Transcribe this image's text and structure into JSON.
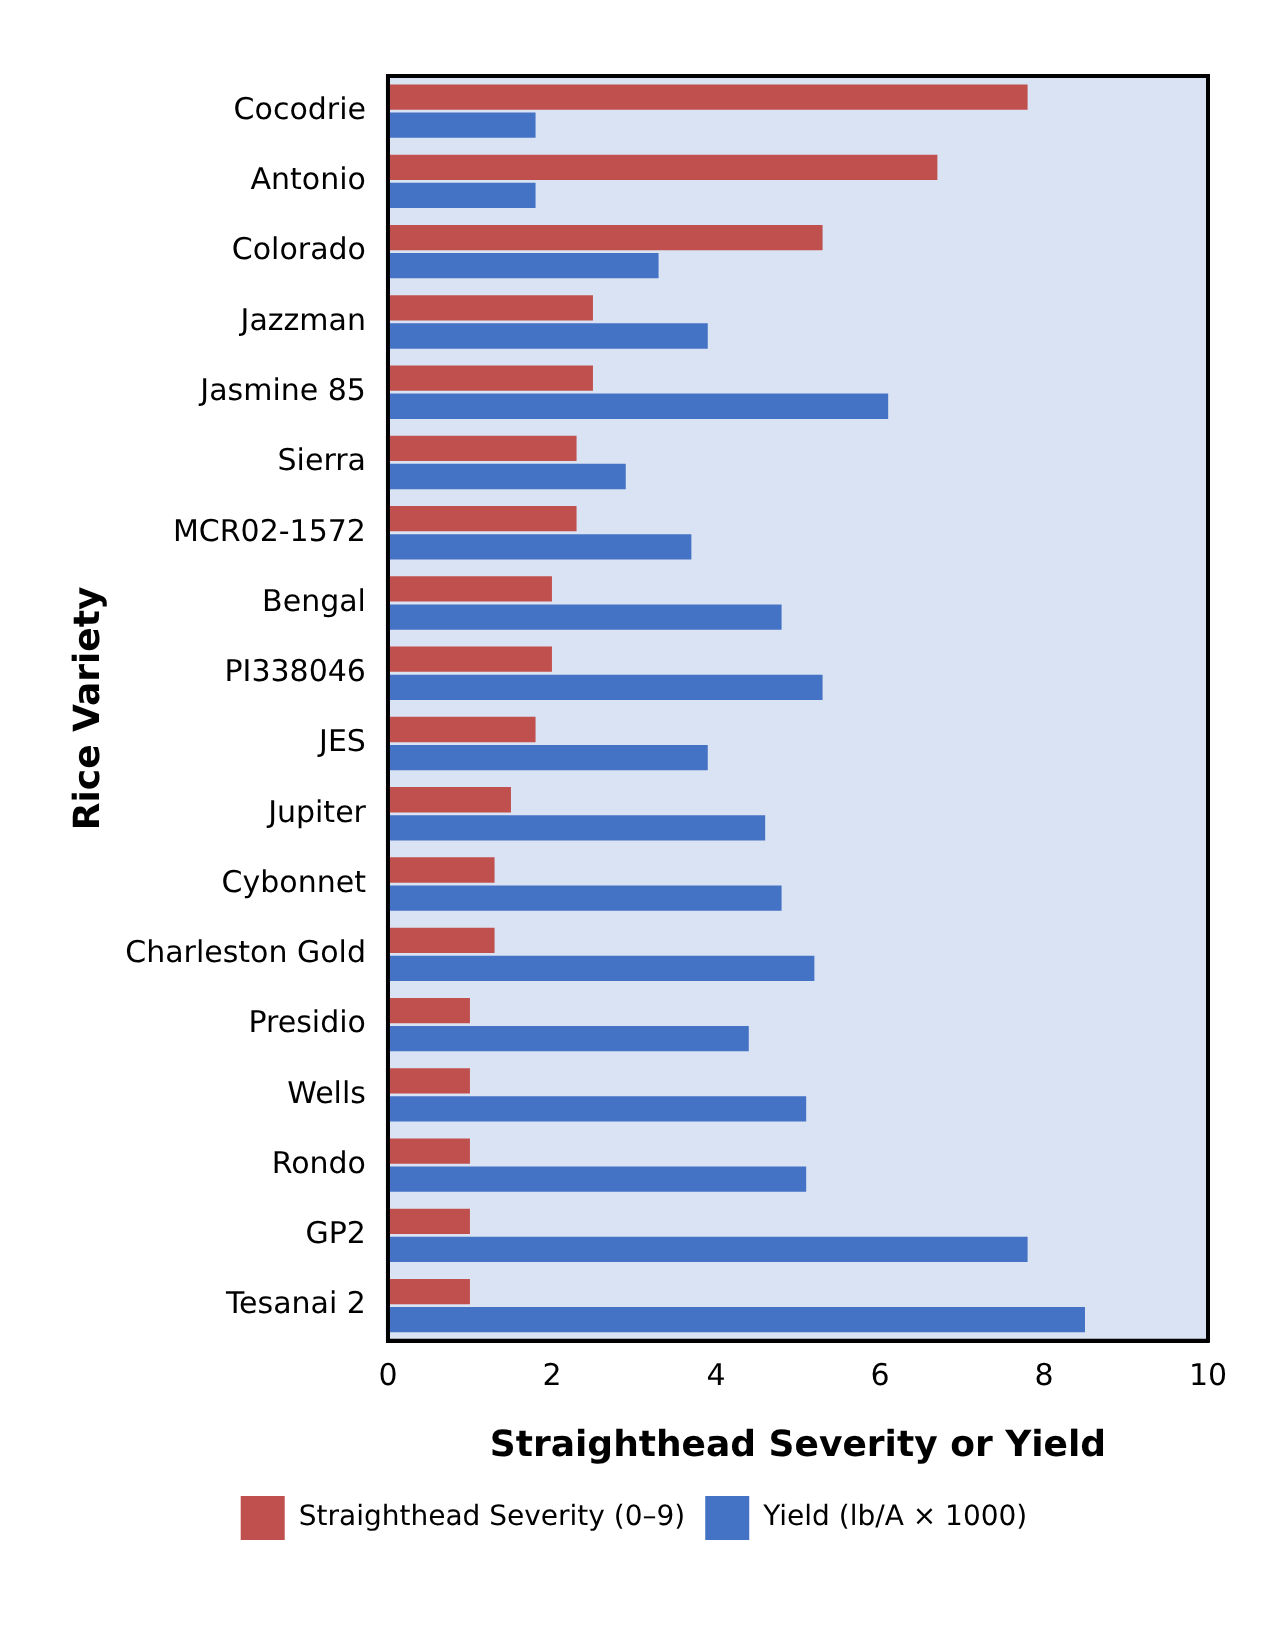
{
  "chart_data": {
    "type": "bar",
    "orientation": "horizontal",
    "xlabel": "Straighthead Severity or Yield",
    "ylabel": "Rice Variety",
    "categories": [
      "Cocodrie",
      "Antonio",
      "Colorado",
      "Jazzman",
      "Jasmine 85",
      "Sierra",
      "MCR02-1572",
      "Bengal",
      "PI338046",
      "JES",
      "Jupiter",
      "Cybonnet",
      "Charleston Gold",
      "Presidio",
      "Wells",
      "Rondo",
      "GP2",
      "Tesanai 2"
    ],
    "series": [
      {
        "name": "Straighthead Severity (0–9)",
        "color": "#c0504d",
        "values": [
          7.8,
          6.7,
          5.3,
          2.5,
          2.5,
          2.3,
          2.3,
          2.0,
          2.0,
          1.8,
          1.5,
          1.3,
          1.3,
          1.0,
          1.0,
          1.0,
          1.0,
          1.0
        ]
      },
      {
        "name": "Yield (lb/A × 1000)",
        "color": "#4472c4",
        "values": [
          1.8,
          1.8,
          3.3,
          3.9,
          6.1,
          2.9,
          3.7,
          4.8,
          5.3,
          3.9,
          4.6,
          4.8,
          5.2,
          4.4,
          5.1,
          5.1,
          7.8,
          8.5
        ]
      }
    ],
    "xlim": [
      0,
      10
    ],
    "xticks": [
      0,
      2,
      4,
      6,
      8,
      10
    ],
    "grid": false,
    "legend": "bottom"
  }
}
